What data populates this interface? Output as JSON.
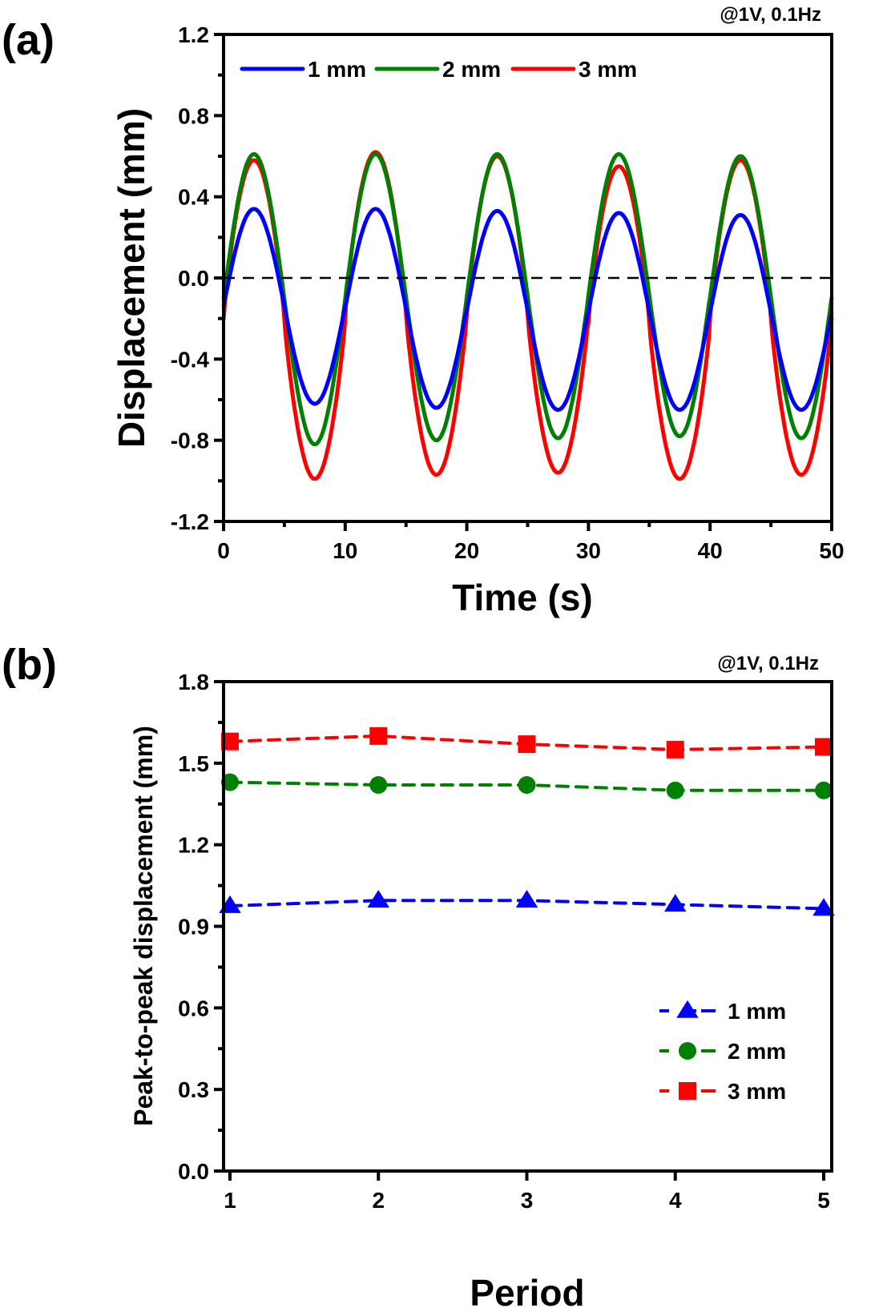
{
  "chart_data": [
    {
      "panel_label": "(a)",
      "type": "line",
      "annotation": "@1V, 0.1Hz",
      "xlabel": "Time (s)",
      "ylabel": "Displacement (mm)",
      "xlim": [
        0,
        50
      ],
      "ylim": [
        -1.2,
        1.2
      ],
      "xticks": [
        0,
        10,
        20,
        30,
        40,
        50
      ],
      "xtick_labels": [
        "0",
        "10",
        "20",
        "30",
        "40",
        "50"
      ],
      "yticks": [
        -1.2,
        -0.8,
        -0.4,
        0.0,
        0.4,
        0.8,
        1.2
      ],
      "ytick_labels": [
        "-1.2",
        "-0.8",
        "-0.4",
        "0.0",
        "0.4",
        "0.8",
        "1.2"
      ],
      "reference_line": {
        "y": 0.0,
        "style": "dashed"
      },
      "legend_position": "top-left",
      "period_s": 10,
      "series": [
        {
          "name": "1 mm",
          "color": "#0000ff",
          "peaks": [
            0.34,
            0.34,
            0.33,
            0.32,
            0.31
          ],
          "troughs": [
            -0.62,
            -0.64,
            -0.65,
            -0.65,
            -0.65
          ],
          "start_value": -0.15,
          "end_value": -0.15
        },
        {
          "name": "2 mm",
          "color": "#008000",
          "peaks": [
            0.61,
            0.61,
            0.61,
            0.61,
            0.6
          ],
          "troughs": [
            -0.82,
            -0.8,
            -0.79,
            -0.78,
            -0.79
          ],
          "start_value": -0.2,
          "end_value": -0.3
        },
        {
          "name": "3 mm",
          "color": "#ff0000",
          "peaks": [
            0.58,
            0.62,
            0.6,
            0.55,
            0.58
          ],
          "troughs": [
            -0.99,
            -0.97,
            -0.96,
            -0.99,
            -0.97
          ],
          "start_value": -0.38,
          "end_value": -0.3
        }
      ]
    },
    {
      "panel_label": "(b)",
      "type": "line",
      "annotation": "@1V, 0.1Hz",
      "xlabel": "Period",
      "ylabel": "Peak-to-peak displacement (mm)",
      "xlim": [
        1,
        5
      ],
      "ylim": [
        0.0,
        1.8
      ],
      "x": [
        1,
        2,
        3,
        4,
        5
      ],
      "xtick_labels": [
        "1",
        "2",
        "3",
        "4",
        "5"
      ],
      "yticks": [
        0.0,
        0.3,
        0.6,
        0.9,
        1.2,
        1.5,
        1.8
      ],
      "ytick_labels": [
        "0.0",
        "0.3",
        "0.6",
        "0.9",
        "1.2",
        "1.5",
        "1.8"
      ],
      "legend_position": "bottom-right",
      "series": [
        {
          "name": "1 mm",
          "color": "#0000ff",
          "marker": "triangle",
          "line": "dashed",
          "values": [
            0.975,
            0.995,
            0.995,
            0.98,
            0.965
          ]
        },
        {
          "name": "2 mm",
          "color": "#008000",
          "marker": "circle",
          "line": "dashed",
          "values": [
            1.43,
            1.42,
            1.42,
            1.4,
            1.4
          ]
        },
        {
          "name": "3 mm",
          "color": "#ff0000",
          "marker": "square",
          "line": "dashed",
          "values": [
            1.58,
            1.6,
            1.57,
            1.55,
            1.56
          ]
        }
      ]
    }
  ]
}
